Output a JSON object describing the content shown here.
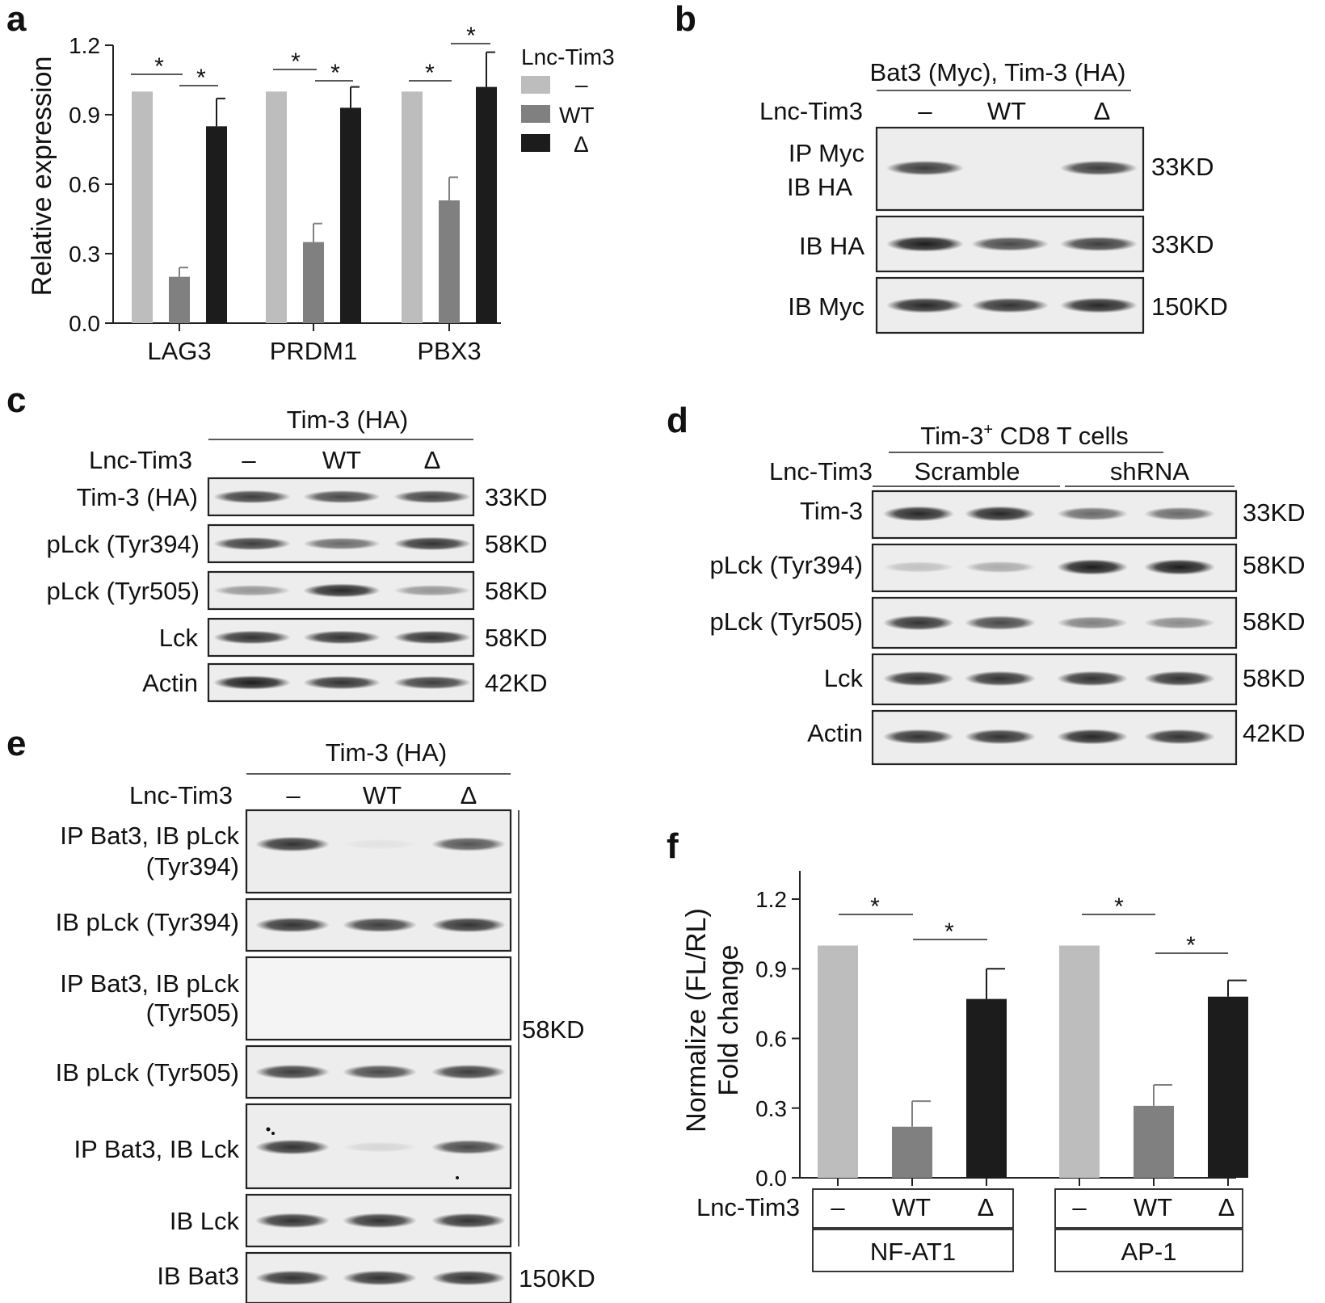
{
  "panels": {
    "a": {
      "label": "a",
      "legend": {
        "title": "Lnc-Tim3",
        "items": [
          "–",
          "WT",
          "Δ"
        ]
      },
      "sig": "*"
    },
    "b": {
      "label": "b",
      "header": "Bat3 (Myc), Tim-3 (HA)",
      "condition_label": "Lnc-Tim3",
      "lanes": [
        "–",
        "WT",
        "Δ"
      ],
      "rows": [
        {
          "label_lines": [
            "IP Myc",
            "IB HA"
          ],
          "size": "33KD",
          "intensity": [
            0.8,
            0.0,
            0.8
          ]
        },
        {
          "label_lines": [
            "IB HA"
          ],
          "size": "33KD",
          "intensity": [
            0.95,
            0.75,
            0.8
          ]
        },
        {
          "label_lines": [
            "IB Myc"
          ],
          "size": "150KD",
          "intensity": [
            0.9,
            0.85,
            0.9
          ]
        }
      ]
    },
    "c": {
      "label": "c",
      "header": "Tim-3 (HA)",
      "condition_label": "Lnc-Tim3",
      "lanes": [
        "–",
        "WT",
        "Δ"
      ],
      "rows": [
        {
          "label": "Tim-3 (HA)",
          "size": "33KD",
          "intensity": [
            0.8,
            0.75,
            0.78
          ]
        },
        {
          "label": "pLck (Tyr394)",
          "size": "58KD",
          "intensity": [
            0.8,
            0.6,
            0.85
          ]
        },
        {
          "label": "pLck (Tyr505)",
          "size": "58KD",
          "intensity": [
            0.4,
            0.9,
            0.4
          ]
        },
        {
          "label": "Lck",
          "size": "58KD",
          "intensity": [
            0.85,
            0.85,
            0.85
          ]
        },
        {
          "label": "Actin",
          "size": "42KD",
          "intensity": [
            0.95,
            0.85,
            0.8
          ]
        }
      ]
    },
    "d": {
      "label": "d",
      "header_main": "Tim-3",
      "header_sup": "+",
      "header_rest": " CD8 T cells",
      "condition_label": "Lnc-Tim3",
      "groups": [
        "Scramble",
        "shRNA"
      ],
      "rows": [
        {
          "label": "Tim-3",
          "size": "33KD",
          "intensity": [
            0.9,
            0.9,
            0.6,
            0.6
          ]
        },
        {
          "label": "pLck (Tyr394)",
          "size": "58KD",
          "intensity": [
            0.2,
            0.3,
            0.95,
            0.95
          ]
        },
        {
          "label": "pLck (Tyr505)",
          "size": "58KD",
          "intensity": [
            0.85,
            0.75,
            0.5,
            0.45
          ]
        },
        {
          "label": "Lck",
          "size": "58KD",
          "intensity": [
            0.85,
            0.85,
            0.85,
            0.85
          ]
        },
        {
          "label": "Actin",
          "size": "42KD",
          "intensity": [
            0.85,
            0.85,
            0.9,
            0.85
          ]
        }
      ]
    },
    "e": {
      "label": "e",
      "header": "Tim-3 (HA)",
      "condition_label": "Lnc-Tim3",
      "lanes": [
        "–",
        "WT",
        "Δ"
      ],
      "rows": [
        {
          "label_lines": [
            "IP Bat3, IB pLck",
            "(Tyr394)"
          ],
          "intensity": [
            0.85,
            0.05,
            0.7
          ]
        },
        {
          "label_lines": [
            "IB pLck (Tyr394)"
          ],
          "intensity": [
            0.85,
            0.8,
            0.85
          ]
        },
        {
          "label_lines": [
            "IP Bat3, IB pLck",
            "(Tyr505)"
          ],
          "intensity": [
            0.0,
            0.0,
            0.0
          ]
        },
        {
          "label_lines": [
            "IB pLck (Tyr505)"
          ],
          "intensity": [
            0.8,
            0.75,
            0.8
          ]
        },
        {
          "label_lines": [
            "IP Bat3, IB Lck"
          ],
          "intensity": [
            0.85,
            0.1,
            0.75
          ]
        },
        {
          "label_lines": [
            "IB Lck"
          ],
          "intensity": [
            0.85,
            0.85,
            0.85
          ]
        },
        {
          "label_lines": [
            "IB Bat3"
          ],
          "intensity": [
            0.85,
            0.85,
            0.85
          ]
        }
      ],
      "size_group": "58KD",
      "size_bat3": "150KD"
    },
    "f": {
      "label": "f",
      "condition_label": "Lnc-Tim3",
      "lanes": [
        "–",
        "WT",
        "Δ"
      ],
      "groups": [
        "NF-AT1",
        "AP-1"
      ],
      "sig": "*"
    }
  },
  "chart_data": [
    {
      "type": "bar",
      "panel": "a",
      "categories": [
        "LAG3",
        "PRDM1",
        "PBX3"
      ],
      "ylabel": "Relative expression",
      "ylim": [
        0,
        1.2
      ],
      "yticks": [
        "0.0",
        "0.3",
        "0.6",
        "0.9",
        "1.2"
      ],
      "series": [
        {
          "name": "–",
          "color": "#bdbdbd",
          "values": [
            1.0,
            1.0,
            1.0
          ],
          "errors": [
            0,
            0,
            0
          ]
        },
        {
          "name": "WT",
          "color": "#808080",
          "values": [
            0.2,
            0.35,
            0.53
          ],
          "errors": [
            0.04,
            0.08,
            0.1
          ]
        },
        {
          "name": "Δ",
          "color": "#1c1c1c",
          "values": [
            0.85,
            0.93,
            1.02
          ],
          "errors": [
            0.12,
            0.09,
            0.15
          ]
        }
      ]
    },
    {
      "type": "bar",
      "panel": "f",
      "categories": [
        "NF-AT1",
        "AP-1"
      ],
      "ylabel_lines": [
        "Normalize (FL/RL)",
        "Fold change"
      ],
      "ylim": [
        0,
        1.2
      ],
      "yticks": [
        "0.0",
        "0.3",
        "0.6",
        "0.9",
        "1.2"
      ],
      "series": [
        {
          "name": "–",
          "color": "#bdbdbd",
          "values": [
            1.0,
            1.0
          ],
          "errors": [
            0,
            0
          ]
        },
        {
          "name": "WT",
          "color": "#808080",
          "values": [
            0.22,
            0.31
          ],
          "errors": [
            0.11,
            0.09
          ]
        },
        {
          "name": "Δ",
          "color": "#1c1c1c",
          "values": [
            0.77,
            0.78
          ],
          "errors": [
            0.13,
            0.07
          ]
        }
      ]
    }
  ]
}
